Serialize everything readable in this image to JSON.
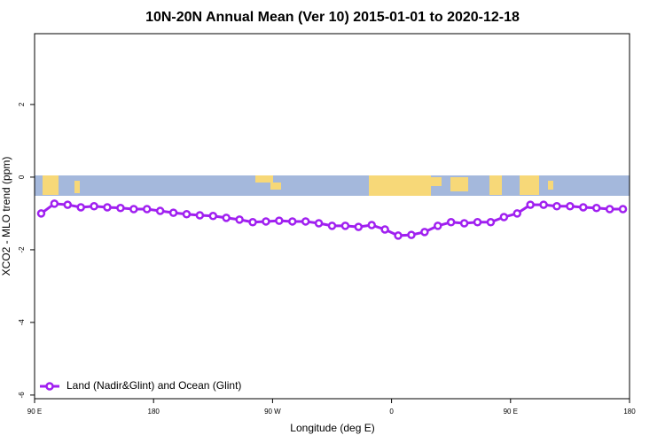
{
  "chart_data": {
    "type": "line",
    "title": "10N-20N Annual Mean (Ver 10)   2015-01-01 to 2020-12-18",
    "x_label": "Longitude (deg E)",
    "y_label": "XCO2 - MLO trend (ppm)",
    "x": [
      95,
      105,
      115,
      125,
      135,
      145,
      155,
      165,
      175,
      185,
      195,
      205,
      215,
      225,
      235,
      245,
      255,
      265,
      275,
      285,
      295,
      305,
      315,
      325,
      335,
      345,
      355,
      365,
      375,
      385,
      395,
      405,
      415,
      425,
      435,
      445,
      455,
      465,
      475,
      485,
      495,
      505,
      515,
      525,
      535
    ],
    "series": [
      {
        "name": "Land (Nadir&Glint) and Ocean (Glint)",
        "color": "#a020f0",
        "values": [
          -1.0,
          -0.73,
          -0.76,
          -0.83,
          -0.8,
          -0.83,
          -0.85,
          -0.88,
          -0.88,
          -0.93,
          -0.98,
          -1.02,
          -1.05,
          -1.07,
          -1.12,
          -1.17,
          -1.24,
          -1.22,
          -1.2,
          -1.22,
          -1.22,
          -1.27,
          -1.34,
          -1.34,
          -1.37,
          -1.32,
          -1.44,
          -1.61,
          -1.59,
          -1.51,
          -1.34,
          -1.24,
          -1.27,
          -1.24,
          -1.24,
          -1.1,
          -1.0,
          -0.76,
          -0.76,
          -0.8,
          -0.8,
          -0.83,
          -0.85,
          -0.88,
          -0.88
        ]
      }
    ],
    "xlim": [
      90,
      540
    ],
    "xticks": [
      {
        "value": 90,
        "label": "90 E"
      },
      180,
      {
        "value": 270,
        "label": "90 W"
      },
      {
        "value": 360,
        "label": "0"
      },
      {
        "value": 450,
        "label": "90 E"
      },
      {
        "value": 540,
        "label": "180"
      }
    ],
    "ylim": [
      -6.1,
      3.95
    ],
    "yticks": [
      2,
      0,
      -2,
      -4,
      -6
    ],
    "legend": "bottom-left"
  }
}
